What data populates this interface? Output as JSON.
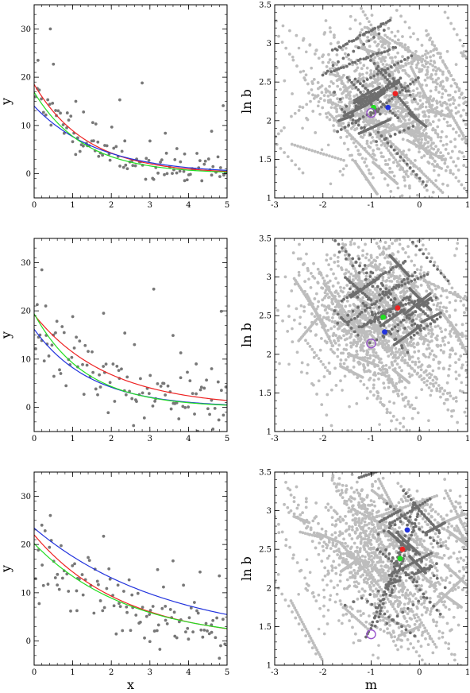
{
  "colors": {
    "points_dark": "#777777",
    "points_light": "#bdbdbd",
    "points_darker": "#6e6e6e",
    "red": "#ee2222",
    "green": "#22dd22",
    "blue": "#2233dd",
    "purple": "#9955cc",
    "frame": "#000000"
  },
  "chart_data": [
    {
      "type": "scatter",
      "panel": "row1-left",
      "xlabel": "",
      "ylabel": "y",
      "xlim": [
        0,
        5
      ],
      "ylim": [
        -5,
        35
      ],
      "xticks": [
        0,
        1,
        2,
        3,
        4,
        5
      ],
      "yticks": [
        0,
        10,
        20,
        30
      ],
      "seed": 11,
      "points": {
        "n": 100,
        "model": {
          "a": 18,
          "b": 0.75
        },
        "noise": 1.6,
        "outliers": [
          [
            0.1,
            23.5
          ],
          [
            0.42,
            30
          ],
          [
            0.5,
            22.7
          ],
          [
            1.08,
            15
          ],
          [
            1.6,
            10.3
          ],
          [
            2.22,
            15.3
          ],
          [
            2.8,
            18.8
          ],
          [
            1.28,
            12.8
          ],
          [
            3.4,
            8.4
          ],
          [
            4.6,
            8.8
          ],
          [
            0.86,
            12.6
          ],
          [
            2.35,
            6.8
          ],
          [
            3.9,
            4.1
          ],
          [
            4.9,
            14.1
          ],
          [
            1.52,
            10.6
          ],
          [
            3.7,
            5.2
          ]
        ]
      },
      "curves": [
        {
          "color": "red",
          "a": 18.5,
          "b": 0.73
        },
        {
          "color": "blue",
          "a": 14.0,
          "b": 0.6
        },
        {
          "color": "green",
          "a": 16.9,
          "b": 0.78
        }
      ]
    },
    {
      "type": "scatter",
      "panel": "row1-right",
      "xlabel": "",
      "ylabel": "ln b",
      "xlim": [
        -3,
        1
      ],
      "ylim": [
        1,
        3.5
      ],
      "xticks": [
        -3,
        -2,
        -1,
        0,
        1
      ],
      "yticks": [
        1,
        1.5,
        2,
        2.5,
        3,
        3.5
      ],
      "seed": 21,
      "cloud": {
        "light_lines": 110,
        "dark_lines": 22,
        "light_center": [
          -0.6,
          2.2
        ],
        "dark_center": [
          -0.8,
          2.3
        ],
        "dark_spread": [
          0.45,
          0.35
        ],
        "extra_dark_bands": [
          [
            -1.8,
            2.9,
            -0.6,
            3.3
          ],
          [
            -2.0,
            2.6,
            -0.5,
            2.95
          ],
          [
            -1.3,
            2.2,
            -0.4,
            2.55
          ]
        ]
      },
      "markers": [
        {
          "color": "red",
          "m": -0.5,
          "lnb": 2.35
        },
        {
          "color": "green",
          "m": -0.95,
          "lnb": 2.17
        },
        {
          "color": "blue",
          "m": -0.65,
          "lnb": 2.17
        }
      ],
      "truth": {
        "m": -1.0,
        "lnb": 2.1
      }
    },
    {
      "type": "scatter",
      "panel": "row2-left",
      "xlabel": "",
      "ylabel": "y",
      "xlim": [
        0,
        5
      ],
      "ylim": [
        -5,
        35
      ],
      "xticks": [
        0,
        1,
        2,
        3,
        4,
        5
      ],
      "yticks": [
        0,
        10,
        20,
        30
      ],
      "seed": 33,
      "points": {
        "n": 100,
        "model": {
          "a": 17,
          "b": 0.62
        },
        "noise": 3.2,
        "outliers": [
          [
            0.2,
            28.5
          ],
          [
            0.08,
            21.3
          ],
          [
            0.3,
            21.0
          ],
          [
            1.0,
            18.8
          ],
          [
            3.1,
            24.5
          ],
          [
            2.35,
            15.4
          ],
          [
            1.8,
            19.5
          ],
          [
            4.85,
            19.9
          ],
          [
            3.6,
            14.9
          ],
          [
            4.2,
            9.0
          ],
          [
            2.6,
            13.0
          ],
          [
            0.5,
            15.0
          ],
          [
            1.4,
            11.6
          ],
          [
            4.6,
            8.0
          ],
          [
            3.8,
            11.3
          ]
        ]
      },
      "curves": [
        {
          "color": "red",
          "a": 19.2,
          "b": 0.52
        },
        {
          "color": "blue",
          "a": 16.2,
          "b": 0.68
        },
        {
          "color": "green",
          "a": 19.4,
          "b": 0.75
        }
      ]
    },
    {
      "type": "scatter",
      "panel": "row2-right",
      "xlabel": "",
      "ylabel": "ln b",
      "xlim": [
        -3,
        1
      ],
      "ylim": [
        1,
        3.5
      ],
      "xticks": [
        -3,
        -2,
        -1,
        0,
        1
      ],
      "yticks": [
        1,
        1.5,
        2,
        2.5,
        3,
        3.5
      ],
      "seed": 44,
      "cloud": {
        "light_lines": 120,
        "dark_lines": 30,
        "light_center": [
          -0.7,
          2.4
        ],
        "dark_center": [
          -0.6,
          2.6
        ],
        "dark_spread": [
          0.55,
          0.35
        ],
        "extra_dark_bands": [
          [
            -1.5,
            2.4,
            -0.1,
            3.05
          ],
          [
            -1.2,
            2.35,
            -0.2,
            2.75
          ],
          [
            -1.6,
            2.7,
            -0.3,
            3.2
          ]
        ]
      },
      "markers": [
        {
          "color": "red",
          "m": -0.45,
          "lnb": 2.6
        },
        {
          "color": "green",
          "m": -0.75,
          "lnb": 2.48
        },
        {
          "color": "blue",
          "m": -0.72,
          "lnb": 2.29
        }
      ],
      "truth": {
        "m": -1.0,
        "lnb": 2.14
      }
    },
    {
      "type": "scatter",
      "panel": "row3-left",
      "xlabel": "x",
      "ylabel": "y",
      "xlim": [
        0,
        5
      ],
      "ylim": [
        -5,
        35
      ],
      "xticks": [
        0,
        1,
        2,
        3,
        4,
        5
      ],
      "yticks": [
        0,
        10,
        20,
        30
      ],
      "seed": 55,
      "points": {
        "n": 100,
        "model": {
          "a": 20,
          "b": 0.42
        },
        "noise": 4.2,
        "outliers": [
          [
            0.42,
            26.0
          ],
          [
            0.2,
            24.0
          ],
          [
            1.8,
            21.7
          ],
          [
            3.6,
            16.6
          ],
          [
            3.2,
            14.8
          ],
          [
            4.3,
            14.3
          ],
          [
            4.8,
            13.5
          ],
          [
            2.5,
            2.2
          ],
          [
            4.0,
            0.4
          ],
          [
            3.0,
            -0.1
          ],
          [
            4.6,
            1.8
          ],
          [
            0.6,
            11.6
          ],
          [
            1.1,
            10.4
          ],
          [
            2.2,
            7.8
          ],
          [
            3.4,
            7.2
          ]
        ]
      },
      "curves": [
        {
          "color": "red",
          "a": 22.0,
          "b": 0.43
        },
        {
          "color": "blue",
          "a": 23.4,
          "b": 0.29
        },
        {
          "color": "green",
          "a": 20.2,
          "b": 0.41
        }
      ]
    },
    {
      "type": "scatter",
      "panel": "row3-right",
      "xlabel": "m",
      "ylabel": "ln b",
      "xlim": [
        -3,
        1
      ],
      "ylim": [
        1,
        3.5
      ],
      "xticks": [
        -3,
        -2,
        -1,
        0,
        1
      ],
      "yticks": [
        1,
        1.5,
        2,
        2.5,
        3,
        3.5
      ],
      "seed": 66,
      "cloud": {
        "light_lines": 120,
        "dark_lines": 26,
        "light_center": [
          -0.5,
          2.3
        ],
        "dark_center": [
          -0.4,
          2.45
        ],
        "dark_spread": [
          0.35,
          0.6
        ],
        "extra_dark_bands": [
          [
            -0.9,
            1.5,
            -0.1,
            3.1
          ],
          [
            -0.6,
            1.9,
            0.0,
            3.0
          ],
          [
            -1.1,
            1.35,
            -0.35,
            2.5
          ]
        ]
      },
      "markers": [
        {
          "color": "red",
          "m": -0.35,
          "lnb": 2.5
        },
        {
          "color": "green",
          "m": -0.4,
          "lnb": 2.38
        },
        {
          "color": "blue",
          "m": -0.25,
          "lnb": 2.75
        }
      ],
      "truth": {
        "m": -1.0,
        "lnb": 1.4
      }
    }
  ]
}
